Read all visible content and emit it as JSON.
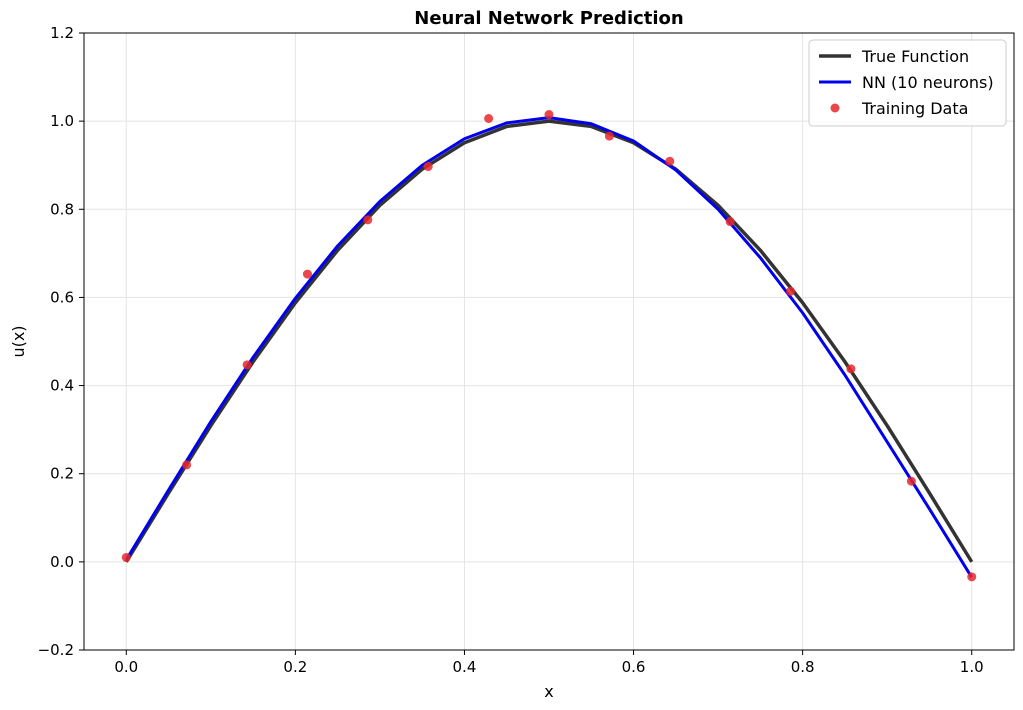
{
  "chart_data": {
    "type": "line",
    "title": "Neural Network Prediction",
    "xlabel": "x",
    "ylabel": "u(x)",
    "xlim": [
      -0.05,
      1.05
    ],
    "ylim": [
      -0.2,
      1.2
    ],
    "xticks": [
      0.0,
      0.2,
      0.4,
      0.6,
      0.8,
      1.0
    ],
    "yticks": [
      -0.2,
      0.0,
      0.2,
      0.4,
      0.6,
      0.8,
      1.0,
      1.2
    ],
    "xtick_labels": [
      "0.0",
      "0.2",
      "0.4",
      "0.6",
      "0.8",
      "1.0"
    ],
    "ytick_labels": [
      "−0.2",
      "0.0",
      "0.2",
      "0.4",
      "0.6",
      "0.8",
      "1.0",
      "1.2"
    ],
    "grid": true,
    "legend_position": "top-right",
    "series": [
      {
        "name": "True Function",
        "kind": "line",
        "color": "#333333",
        "x": [
          0.0,
          0.05,
          0.1,
          0.15,
          0.2,
          0.25,
          0.3,
          0.35,
          0.4,
          0.45,
          0.5,
          0.55,
          0.6,
          0.65,
          0.7,
          0.75,
          0.8,
          0.85,
          0.9,
          0.95,
          1.0
        ],
        "y": [
          0.0,
          0.156,
          0.309,
          0.454,
          0.588,
          0.707,
          0.809,
          0.891,
          0.951,
          0.988,
          1.0,
          0.988,
          0.951,
          0.891,
          0.809,
          0.707,
          0.588,
          0.454,
          0.309,
          0.156,
          0.0
        ]
      },
      {
        "name": "NN (10 neurons)",
        "kind": "line",
        "color": "#0000ee",
        "x": [
          0.0,
          0.05,
          0.1,
          0.15,
          0.2,
          0.25,
          0.3,
          0.35,
          0.4,
          0.45,
          0.5,
          0.55,
          0.6,
          0.65,
          0.7,
          0.75,
          0.8,
          0.85,
          0.9,
          0.95,
          1.0
        ],
        "y": [
          0.005,
          0.163,
          0.318,
          0.464,
          0.598,
          0.717,
          0.818,
          0.9,
          0.96,
          0.996,
          1.008,
          0.994,
          0.955,
          0.889,
          0.8,
          0.69,
          0.565,
          0.424,
          0.272,
          0.12,
          -0.035
        ]
      },
      {
        "name": "Training Data",
        "kind": "scatter",
        "color": "#e8282b",
        "x": [
          0.0,
          0.0714,
          0.1429,
          0.2143,
          0.2857,
          0.3571,
          0.4286,
          0.5,
          0.5714,
          0.6429,
          0.7143,
          0.7857,
          0.8571,
          0.9286,
          1.0
        ],
        "y": [
          0.01,
          0.22,
          0.447,
          0.653,
          0.776,
          0.897,
          1.006,
          1.015,
          0.966,
          0.909,
          0.772,
          0.614,
          0.438,
          0.183,
          -0.034
        ]
      }
    ]
  }
}
